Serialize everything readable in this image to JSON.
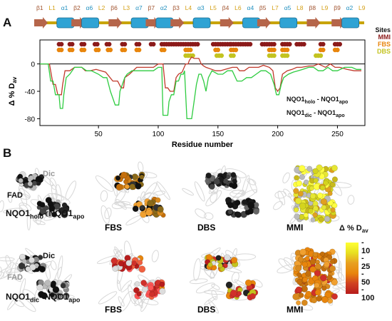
{
  "panel_a": {
    "letter": "A",
    "secondary_structure": [
      {
        "label": "β1",
        "color": "#a0522d"
      },
      {
        "label": "L1",
        "color": "#d4a017"
      },
      {
        "label": "α1",
        "color": "#1f8fbf"
      },
      {
        "label": "β2",
        "color": "#a0522d"
      },
      {
        "label": "α6",
        "color": "#1f8fbf"
      },
      {
        "label": "L2",
        "color": "#d4a017"
      },
      {
        "label": "β6",
        "color": "#a0522d"
      },
      {
        "label": "L3",
        "color": "#d4a017"
      },
      {
        "label": "α7",
        "color": "#1f8fbf"
      },
      {
        "label": "β7",
        "color": "#a0522d"
      },
      {
        "label": "α2",
        "color": "#1f8fbf"
      },
      {
        "label": "β3",
        "color": "#a0522d"
      },
      {
        "label": "L4",
        "color": "#d4a017"
      },
      {
        "label": "α3",
        "color": "#1f8fbf"
      },
      {
        "label": "L5",
        "color": "#d4a017"
      },
      {
        "label": "β4",
        "color": "#a0522d"
      },
      {
        "label": "L6",
        "color": "#d4a017"
      },
      {
        "label": "α4",
        "color": "#1f8fbf"
      },
      {
        "label": "β5",
        "color": "#a0522d"
      },
      {
        "label": "L7",
        "color": "#d4a017"
      },
      {
        "label": "α5",
        "color": "#1f8fbf"
      },
      {
        "label": "L8",
        "color": "#d4a017"
      },
      {
        "label": "β8",
        "color": "#a0522d"
      },
      {
        "label": "L9",
        "color": "#d4a017"
      },
      {
        "label": "β9",
        "color": "#a0522d"
      },
      {
        "label": "α2",
        "color": "#1f8fbf"
      },
      {
        "label": "L9",
        "color": "#d4a017"
      }
    ],
    "sites": {
      "title": "Sites",
      "rows": [
        {
          "label": "MMI",
          "color": "#8b1a1a"
        },
        {
          "label": "FBS",
          "color": "#e8850c"
        },
        {
          "label": "DBS",
          "color": "#c3c320"
        }
      ]
    },
    "legend": {
      "holo": {
        "main": "NQO1",
        "sub1": "holo",
        "mid": " - NQO1",
        "sub2": "apo",
        "color": "#d9401a"
      },
      "dic": {
        "main": "NQO1",
        "sub1": "dic",
        "mid": " - NQO1",
        "sub2": "apo",
        "color": "#22cc22"
      }
    }
  },
  "chart_data": {
    "type": "line",
    "xlabel": "Residue number",
    "ylabel": "Δ % D",
    "ylabel_sub": "av",
    "xlim": [
      1,
      273
    ],
    "ylim": [
      -90,
      10
    ],
    "xticks": [
      50,
      100,
      150,
      200,
      250
    ],
    "yticks": [
      0,
      -40,
      -80
    ],
    "zero_line": true,
    "series": [
      {
        "name": "NQO1holo - NQO1apo",
        "color": "#c0392b",
        "points": [
          [
            1,
            0
          ],
          [
            9,
            0
          ],
          [
            12,
            -30
          ],
          [
            14,
            -30
          ],
          [
            16,
            -45
          ],
          [
            19,
            -45
          ],
          [
            20,
            -30
          ],
          [
            22,
            -10
          ],
          [
            26,
            -10
          ],
          [
            30,
            -5
          ],
          [
            36,
            -5
          ],
          [
            39,
            -10
          ],
          [
            43,
            -10
          ],
          [
            48,
            -8
          ],
          [
            56,
            -12
          ],
          [
            62,
            -25
          ],
          [
            66,
            -25
          ],
          [
            69,
            -35
          ],
          [
            71,
            -35
          ],
          [
            72,
            -20
          ],
          [
            76,
            -15
          ],
          [
            82,
            -5
          ],
          [
            90,
            -5
          ],
          [
            96,
            -5
          ],
          [
            100,
            0
          ],
          [
            104,
            0
          ],
          [
            106,
            -35
          ],
          [
            108,
            -35
          ],
          [
            110,
            -40
          ],
          [
            113,
            -40
          ],
          [
            115,
            -20
          ],
          [
            117,
            -15
          ],
          [
            120,
            -12
          ],
          [
            123,
            0
          ],
          [
            125,
            0
          ],
          [
            126,
            5
          ],
          [
            128,
            10
          ],
          [
            130,
            8
          ],
          [
            134,
            8
          ],
          [
            136,
            0
          ],
          [
            138,
            -3
          ],
          [
            140,
            -5
          ],
          [
            145,
            -8
          ],
          [
            148,
            -10
          ],
          [
            152,
            -10
          ],
          [
            156,
            -8
          ],
          [
            162,
            -5
          ],
          [
            166,
            -5
          ],
          [
            168,
            -10
          ],
          [
            172,
            -10
          ],
          [
            176,
            -5
          ],
          [
            180,
            -5
          ],
          [
            184,
            -5
          ],
          [
            188,
            -2
          ],
          [
            193,
            -5
          ],
          [
            196,
            -10
          ],
          [
            198,
            -35
          ],
          [
            200,
            -40
          ],
          [
            202,
            -35
          ],
          [
            204,
            -15
          ],
          [
            208,
            -10
          ],
          [
            212,
            -8
          ],
          [
            216,
            -5
          ],
          [
            220,
            -5
          ],
          [
            226,
            -3
          ],
          [
            230,
            -3
          ],
          [
            234,
            0
          ],
          [
            240,
            -5
          ],
          [
            244,
            0
          ],
          [
            248,
            -5
          ],
          [
            252,
            -5
          ],
          [
            258,
            -8
          ],
          [
            264,
            -10
          ],
          [
            270,
            -10
          ]
        ]
      },
      {
        "name": "NQO1dic - NQO1apo",
        "color": "#2ecc40",
        "points": [
          [
            1,
            0
          ],
          [
            8,
            0
          ],
          [
            10,
            -25
          ],
          [
            12,
            -25
          ],
          [
            14,
            -45
          ],
          [
            17,
            -45
          ],
          [
            18,
            -65
          ],
          [
            20,
            -65
          ],
          [
            21,
            -45
          ],
          [
            23,
            -20
          ],
          [
            26,
            -15
          ],
          [
            30,
            -5
          ],
          [
            36,
            -5
          ],
          [
            40,
            -10
          ],
          [
            44,
            -10
          ],
          [
            50,
            -15
          ],
          [
            54,
            -20
          ],
          [
            57,
            -20
          ],
          [
            60,
            -40
          ],
          [
            62,
            -50
          ],
          [
            64,
            -60
          ],
          [
            67,
            -60
          ],
          [
            68,
            -40
          ],
          [
            70,
            -30
          ],
          [
            72,
            -20
          ],
          [
            74,
            -15
          ],
          [
            78,
            -10
          ],
          [
            84,
            -10
          ],
          [
            90,
            -10
          ],
          [
            96,
            -10
          ],
          [
            100,
            -5
          ],
          [
            103,
            -5
          ],
          [
            104,
            -75
          ],
          [
            108,
            -75
          ],
          [
            109,
            -55
          ],
          [
            111,
            -45
          ],
          [
            113,
            -45
          ],
          [
            115,
            -25
          ],
          [
            117,
            -25
          ],
          [
            119,
            -15
          ],
          [
            121,
            -15
          ],
          [
            122,
            -10
          ],
          [
            124,
            -80
          ],
          [
            128,
            -80
          ],
          [
            130,
            -55
          ],
          [
            132,
            -30
          ],
          [
            134,
            -15
          ],
          [
            136,
            -15
          ],
          [
            138,
            -25
          ],
          [
            140,
            -40
          ],
          [
            142,
            -20
          ],
          [
            145,
            -10
          ],
          [
            150,
            -15
          ],
          [
            154,
            -15
          ],
          [
            158,
            -10
          ],
          [
            162,
            -10
          ],
          [
            166,
            -25
          ],
          [
            170,
            -25
          ],
          [
            174,
            -20
          ],
          [
            178,
            -20
          ],
          [
            182,
            -15
          ],
          [
            186,
            -10
          ],
          [
            190,
            -10
          ],
          [
            194,
            -15
          ],
          [
            197,
            -30
          ],
          [
            199,
            -45
          ],
          [
            201,
            -45
          ],
          [
            203,
            -30
          ],
          [
            205,
            -20
          ],
          [
            209,
            -15
          ],
          [
            213,
            -12
          ],
          [
            217,
            -10
          ],
          [
            221,
            -8
          ],
          [
            226,
            -5
          ],
          [
            230,
            -5
          ],
          [
            234,
            -10
          ],
          [
            238,
            -10
          ],
          [
            242,
            -5
          ],
          [
            246,
            -10
          ],
          [
            250,
            -10
          ],
          [
            256,
            -5
          ],
          [
            262,
            -5
          ],
          [
            266,
            -8
          ],
          [
            270,
            -8
          ]
        ]
      }
    ],
    "site_markers": [
      {
        "name": "MMI",
        "color": "#8b1a1a",
        "ranges": [
          [
            17,
            19
          ],
          [
            26,
            28
          ],
          [
            36,
            39
          ],
          [
            47,
            50
          ],
          [
            57,
            60
          ],
          [
            70,
            72
          ],
          [
            82,
            84
          ],
          [
            94,
            96
          ],
          [
            103,
            133
          ],
          [
            146,
            160
          ],
          [
            161,
            178
          ],
          [
            187,
            198
          ],
          [
            204,
            210
          ],
          [
            216,
            222
          ],
          [
            236,
            239
          ],
          [
            248,
            252
          ]
        ]
      },
      {
        "name": "FBS",
        "color": "#e8850c",
        "ranges": [
          [
            17,
            20
          ],
          [
            26,
            28
          ],
          [
            36,
            39
          ],
          [
            48,
            50
          ],
          [
            58,
            60
          ],
          [
            70,
            72
          ],
          [
            82,
            84
          ],
          [
            103,
            106
          ],
          [
            123,
            128
          ],
          [
            148,
            151
          ],
          [
            161,
            166
          ],
          [
            193,
            197
          ],
          [
            204,
            208
          ],
          [
            236,
            238
          ],
          [
            248,
            251
          ]
        ]
      },
      {
        "name": "DBS",
        "color": "#c3c320",
        "ranges": [
          [
            123,
            130
          ],
          [
            149,
            153
          ],
          [
            161,
            164
          ],
          [
            193,
            197
          ],
          [
            204,
            208
          ],
          [
            232,
            236
          ]
        ]
      }
    ]
  },
  "panel_b": {
    "letter": "B",
    "rows": [
      {
        "row_label": {
          "main": "NQO1",
          "sub": "holo",
          "tail": "- NQO1",
          "sub2": "apo"
        },
        "structures": [
          {
            "label": "",
            "fad_label": "FAD",
            "dic_label": "Dic",
            "palette": [
              "#111111",
              "#222222",
              "#444444",
              "#bbbbbb",
              "#dddddd"
            ]
          },
          {
            "label": "FBS",
            "palette": [
              "#8b6a1a",
              "#c46f0c",
              "#d98a1e",
              "#f0a030",
              "#111111",
              "#333333"
            ]
          },
          {
            "label": "DBS",
            "palette": [
              "#111111",
              "#1a1a1a",
              "#444444",
              "#666666"
            ]
          },
          {
            "label": "MMI",
            "palette": [
              "#d4d41e",
              "#e6e632",
              "#c9b91c",
              "#e0a020",
              "#ffff40",
              "#bbbbbb"
            ]
          }
        ]
      },
      {
        "row_label": {
          "main": "NQO1",
          "sub": "dic",
          "tail": "- NQO1",
          "sub2": "apo"
        },
        "structures": [
          {
            "label": "",
            "fad_label": "FAD",
            "dic_label": "Dic",
            "palette": [
              "#111111",
              "#333333",
              "#888888",
              "#bbbbbb",
              "#dddddd"
            ]
          },
          {
            "label": "FBS",
            "palette": [
              "#d0302a",
              "#b71c1c",
              "#e8850c",
              "#ff5555",
              "#dddddd",
              "#f06040"
            ]
          },
          {
            "label": "DBS",
            "palette": [
              "#b71c1c",
              "#d0302a",
              "#c3c320",
              "#222222",
              "#dddddd",
              "#e8850c"
            ]
          },
          {
            "label": "MMI",
            "palette": [
              "#e8850c",
              "#d98a1e",
              "#d0302a",
              "#f0a030",
              "#c46f0c"
            ]
          }
        ]
      }
    ],
    "color_scale": {
      "title_main": "Δ % D",
      "title_sub": "av",
      "ticks": [
        "10",
        "25",
        "50",
        "100"
      ],
      "colors": [
        "#ffff33",
        "#e8e020",
        "#e8a020",
        "#e8850c",
        "#d04020",
        "#b71c1c"
      ]
    }
  }
}
